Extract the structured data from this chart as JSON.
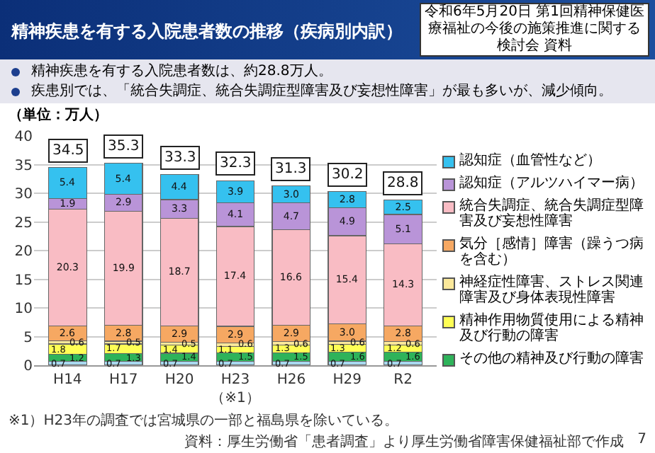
{
  "chart_data": {
    "type": "bar",
    "stacked": true,
    "title": "精神疾患を有する入院患者数の推移（疾病別内訳）",
    "annotations": [
      "令和6年5月20日 第1回精神保健医療福祉の今後の施策推進に関する検討会 資料",
      "精神疾患を有する入院患者数は、約28.8万人。",
      "疾患別では、「統合失調症、統合失調症型障害及び妄想性障害」が最も多いが、減少傾向。",
      "（単位：万人）",
      "※1）H23年の調査では宮城県の一部と福島県を除いている。",
      "資料：厚生労働省「患者調査」より厚生労働省障害保健福祉部で作成",
      "7"
    ],
    "categories": [
      "H14",
      "H17",
      "H20",
      "H23（※1）",
      "H26",
      "H29",
      "R2"
    ],
    "ylim": [
      0,
      40
    ],
    "yticks": [
      0,
      5,
      10,
      15,
      20,
      25,
      30,
      35,
      40
    ],
    "grid": "y",
    "legend": "right",
    "series": [
      {
        "color": "#a9d8ef",
        "values": [
          0.7,
          0.7,
          0.7,
          0.7,
          0.7,
          0.7,
          0.7
        ],
        "value_labels": [
          "0.7",
          "0.7",
          "0.7",
          "0.7",
          "0.7",
          "0.7",
          "0.7"
        ]
      },
      {
        "name": "その他の精神及び行動の障害",
        "color": "#2eb35a",
        "values": [
          1.2,
          1.3,
          1.4,
          1.5,
          1.5,
          1.6,
          1.6
        ],
        "value_labels": [
          "1.2",
          "1.3",
          "1.4",
          "1.5",
          "1.5",
          "1.6",
          "1.6"
        ]
      },
      {
        "name": "精神作用物質使用による精神及び行動の障害",
        "color": "#ffff55",
        "values": [
          1.8,
          1.7,
          1.4,
          1.1,
          1.3,
          1.3,
          1.2
        ],
        "value_labels": [
          "1.8",
          "1.7",
          "1.4",
          "1.1",
          "1.3",
          "1.3",
          "1.2"
        ]
      },
      {
        "name": "神経症性障害、ストレス関連障害及び身体表現性障害",
        "color": "#fbe89a",
        "values": [
          0.6,
          0.5,
          0.5,
          0.6,
          0.6,
          0.6,
          0.6
        ],
        "value_labels": [
          "0.6",
          "0.5",
          "0.5",
          "0.6",
          "0.6",
          "0.6",
          "0.6"
        ]
      },
      {
        "name": "気分［感情］障害（躁うつ病を含む）",
        "color": "#f6a862",
        "values": [
          2.6,
          2.8,
          2.9,
          2.9,
          2.9,
          3.0,
          2.8
        ],
        "value_labels": [
          "2.6",
          "2.8",
          "2.9",
          "2.9",
          "2.9",
          "3.0",
          "2.8"
        ]
      },
      {
        "name": "統合失調症、統合失調症型障害及び妄想性障害",
        "color": "#f9bcc4",
        "values": [
          20.3,
          19.9,
          18.7,
          17.4,
          16.6,
          15.4,
          14.3
        ],
        "value_labels": [
          "20.3",
          "19.9",
          "18.7",
          "17.4",
          "16.6",
          "15.4",
          "14.3"
        ]
      },
      {
        "name": "認知症（アルツハイマー病）",
        "color": "#b994d8",
        "values": [
          1.9,
          2.9,
          3.3,
          4.1,
          4.7,
          4.9,
          5.1
        ],
        "value_labels": [
          "1.9",
          "2.9",
          "3.3",
          "4.1",
          "4.7",
          "4.9",
          "5.1"
        ]
      },
      {
        "name": "認知症（血管性など）",
        "color": "#35c1ef",
        "values": [
          5.4,
          5.4,
          4.4,
          3.9,
          3.0,
          2.8,
          2.5
        ],
        "value_labels": [
          "5.4",
          "5.4",
          "4.4",
          "3.9",
          "3.0",
          "2.8",
          "2.5"
        ]
      }
    ],
    "totals": [
      "34.5",
      "35.3",
      "33.3",
      "32.3",
      "31.3",
      "30.2",
      "28.8"
    ]
  }
}
